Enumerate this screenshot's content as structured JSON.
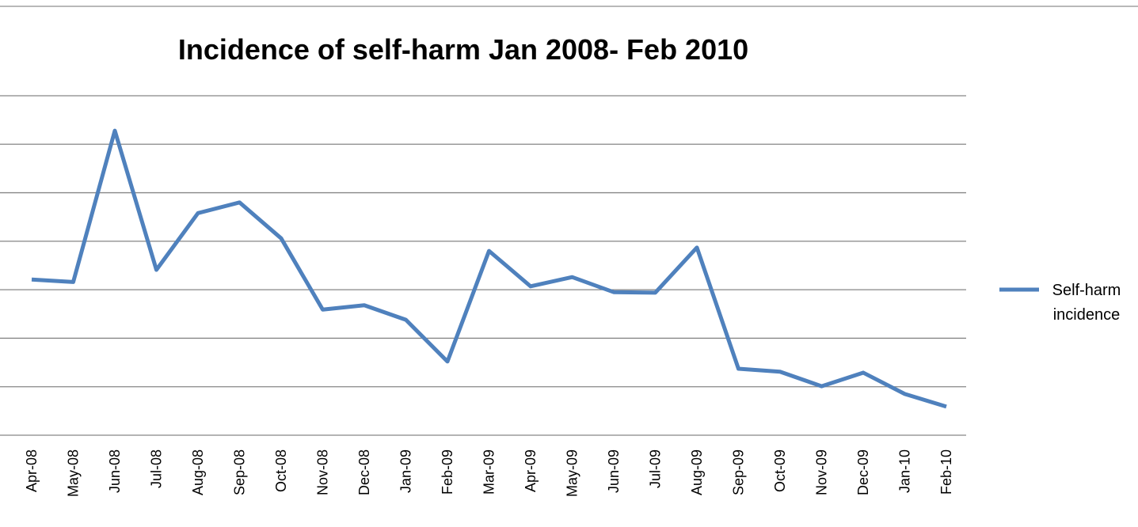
{
  "chart_data": {
    "type": "line",
    "title": "Incidence of self-harm Jan 2008- Feb 2010",
    "categories": [
      "Apr-08",
      "May-08",
      "Jun-08",
      "Jul-08",
      "Aug-08",
      "Sep-08",
      "Oct-08",
      "Nov-08",
      "Dec-08",
      "Jan-09",
      "Feb-09",
      "Mar-09",
      "Apr-09",
      "May-09",
      "Jun-09",
      "Jul-09",
      "Aug-09",
      "Sep-09",
      "Oct-09",
      "Nov-09",
      "Dec-09",
      "Jan-10",
      "Feb-10"
    ],
    "series": [
      {
        "name": "Self-harm incidence",
        "color": "#4f81bd",
        "values": [
          3.21,
          3.16,
          6.28,
          3.41,
          4.58,
          4.8,
          4.06,
          2.59,
          2.68,
          2.38,
          1.52,
          3.8,
          3.07,
          3.26,
          2.95,
          2.94,
          3.87,
          1.37,
          1.31,
          1.01,
          1.29,
          0.85,
          0.59
        ]
      }
    ],
    "ylim": [
      0,
      7
    ],
    "yticks": [
      0,
      1,
      2,
      3,
      4,
      5,
      6,
      7
    ],
    "grid": true,
    "legend": "right"
  }
}
